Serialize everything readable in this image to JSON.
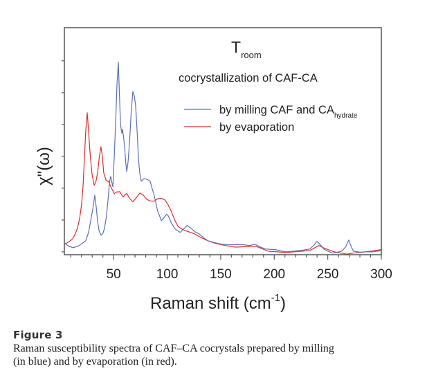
{
  "chart_data": {
    "type": "line",
    "title": "",
    "annotations": {
      "temperature_label": "T",
      "temperature_subscript": "room",
      "subtitle": "cocrystallization of CAF-CA"
    },
    "xlabel": "Raman shift (cm",
    "xlabel_superscript": "-1",
    "xlabel_suffix": ")",
    "ylabel": "χ\"(ω)",
    "xlim": [
      4,
      300
    ],
    "ylim": [
      -0.09,
      7.04
    ],
    "x_ticks": [
      50,
      100,
      150,
      200,
      250,
      300
    ],
    "x_tick_labels": [
      "50",
      "100",
      "150",
      "200",
      "250",
      "300"
    ],
    "x_minor_step": 10,
    "y_ticks": [
      0,
      1,
      2,
      3,
      4,
      5,
      6
    ],
    "y_tick_labels": [],
    "grid": false,
    "legend": {
      "placement": "top-right",
      "entries": [
        {
          "label": "by milling CAF and CA",
          "subscript": "hydrate",
          "color": "#5a6fb5"
        },
        {
          "label": "by evaporation",
          "subscript": "",
          "color": "#e02b2b"
        }
      ]
    },
    "series": [
      {
        "name": "by milling CAF and CA_hydrate",
        "color": "#5a6fb5",
        "points": [
          [
            4,
            0.26
          ],
          [
            5.2,
            0.24
          ],
          [
            8.5,
            0.17
          ],
          [
            12.3,
            0.13
          ],
          [
            18,
            0.2
          ],
          [
            24,
            0.35
          ],
          [
            26.5,
            0.6
          ],
          [
            28.5,
            0.96
          ],
          [
            30.8,
            1.4
          ],
          [
            32.4,
            1.78
          ],
          [
            33.8,
            1.4
          ],
          [
            35,
            0.96
          ],
          [
            36.5,
            0.65
          ],
          [
            38.2,
            0.52
          ],
          [
            40,
            0.58
          ],
          [
            41.5,
            0.74
          ],
          [
            43.2,
            1.1
          ],
          [
            44.7,
            1.61
          ],
          [
            46.2,
            2.2
          ],
          [
            47.3,
            2.37
          ],
          [
            48.3,
            2.2
          ],
          [
            49.3,
            2.04
          ],
          [
            50.5,
            2.9
          ],
          [
            51.8,
            4.0
          ],
          [
            53.2,
            5.3
          ],
          [
            54.4,
            5.96
          ],
          [
            55.4,
            5.0
          ],
          [
            56.4,
            4.0
          ],
          [
            57.7,
            3.72
          ],
          [
            58.3,
            3.85
          ],
          [
            59.3,
            3.6
          ],
          [
            60.3,
            3.28
          ],
          [
            61.3,
            2.8
          ],
          [
            62.2,
            2.52
          ],
          [
            63.4,
            2.8
          ],
          [
            64.8,
            3.41
          ],
          [
            66.4,
            4.4
          ],
          [
            68.0,
            5.04
          ],
          [
            69.3,
            4.9
          ],
          [
            70.6,
            4.59
          ],
          [
            71.9,
            3.8
          ],
          [
            73.2,
            2.91
          ],
          [
            74.5,
            2.45
          ],
          [
            75.8,
            2.22
          ],
          [
            78.4,
            2.3
          ],
          [
            81.0,
            2.28
          ],
          [
            82.7,
            2.25
          ],
          [
            84.3,
            2.2
          ],
          [
            85.9,
            2.0
          ],
          [
            87.5,
            1.83
          ],
          [
            91,
            1.3
          ],
          [
            94.6,
            0.98
          ],
          [
            97.9,
            1.11
          ],
          [
            99.5,
            1.18
          ],
          [
            101.1,
            1.13
          ],
          [
            104,
            0.9
          ],
          [
            107.5,
            0.72
          ],
          [
            112.1,
            0.61
          ],
          [
            115.5,
            0.72
          ],
          [
            118.6,
            0.83
          ],
          [
            122,
            0.75
          ],
          [
            126,
            0.63
          ],
          [
            129.6,
            0.57
          ],
          [
            134,
            0.45
          ],
          [
            138,
            0.35
          ],
          [
            144,
            0.29
          ],
          [
            151,
            0.24
          ],
          [
            158,
            0.22
          ],
          [
            165,
            0.23
          ],
          [
            172.4,
            0.22
          ],
          [
            177,
            0.2
          ],
          [
            182,
            0.24
          ],
          [
            187,
            0.15
          ],
          [
            191.8,
            0.09
          ],
          [
            196,
            0.08
          ],
          [
            200.9,
            0.07
          ],
          [
            206,
            0.03
          ],
          [
            211.3,
            0.0
          ],
          [
            218,
            0.02
          ],
          [
            226,
            0.05
          ],
          [
            233.3,
            0.09
          ],
          [
            236.8,
            0.2
          ],
          [
            239.8,
            0.33
          ],
          [
            243,
            0.22
          ],
          [
            246.3,
            0.09
          ],
          [
            250,
            0.02
          ],
          [
            254.7,
            -0.04
          ],
          [
            259,
            -0.01
          ],
          [
            263.1,
            0.02
          ],
          [
            266.5,
            0.15
          ],
          [
            269.6,
            0.37
          ],
          [
            272,
            0.15
          ],
          [
            274.1,
            0.02
          ],
          [
            280,
            -0.01
          ],
          [
            285.2,
            0.0
          ],
          [
            292,
            0.0
          ],
          [
            300,
            0.04
          ]
        ]
      },
      {
        "name": "by evaporation",
        "color": "#e02b2b",
        "points": [
          [
            4,
            0.26
          ],
          [
            5.2,
            0.26
          ],
          [
            8.5,
            0.32
          ],
          [
            11.7,
            0.41
          ],
          [
            14,
            0.55
          ],
          [
            16.2,
            0.74
          ],
          [
            18.3,
            1.05
          ],
          [
            20.1,
            1.5
          ],
          [
            21.5,
            2.1
          ],
          [
            22.7,
            2.91
          ],
          [
            24,
            3.8
          ],
          [
            25.3,
            4.37
          ],
          [
            26.6,
            3.8
          ],
          [
            27.9,
            3.13
          ],
          [
            29.8,
            2.45
          ],
          [
            31.8,
            2.09
          ],
          [
            33.4,
            2.2
          ],
          [
            35,
            2.48
          ],
          [
            36.7,
            3.0
          ],
          [
            38.2,
            3.3
          ],
          [
            39.5,
            3.0
          ],
          [
            40.8,
            2.48
          ],
          [
            43,
            2.25
          ],
          [
            45.4,
            2.2
          ],
          [
            48,
            2.0
          ],
          [
            50.6,
            1.83
          ],
          [
            53,
            1.88
          ],
          [
            55.7,
            1.89
          ],
          [
            57.3,
            1.8
          ],
          [
            59,
            1.72
          ],
          [
            60.6,
            1.8
          ],
          [
            62.2,
            1.83
          ],
          [
            65,
            1.68
          ],
          [
            68,
            1.57
          ],
          [
            71.2,
            1.7
          ],
          [
            74.5,
            1.85
          ],
          [
            77.7,
            1.78
          ],
          [
            81,
            1.65
          ],
          [
            84.2,
            1.6
          ],
          [
            87.5,
            1.59
          ],
          [
            91.4,
            1.67
          ],
          [
            94.6,
            1.68
          ],
          [
            97.9,
            1.63
          ],
          [
            100.8,
            1.48
          ],
          [
            103.7,
            1.28
          ],
          [
            107,
            1.0
          ],
          [
            110.2,
            0.8
          ],
          [
            113.5,
            0.72
          ],
          [
            116.7,
            0.67
          ],
          [
            121,
            0.62
          ],
          [
            125.1,
            0.57
          ],
          [
            131.5,
            0.45
          ],
          [
            138,
            0.35
          ],
          [
            144.5,
            0.27
          ],
          [
            151,
            0.22
          ],
          [
            157.5,
            0.18
          ],
          [
            164,
            0.15
          ],
          [
            170.5,
            0.16
          ],
          [
            177,
            0.17
          ],
          [
            183.4,
            0.17
          ],
          [
            189,
            0.09
          ],
          [
            194.4,
            0.02
          ],
          [
            203,
            0.0
          ],
          [
            211.3,
            -0.02
          ],
          [
            222,
            0.01
          ],
          [
            233.3,
            0.04
          ],
          [
            237.5,
            0.12
          ],
          [
            241.7,
            0.2
          ],
          [
            246,
            0.13
          ],
          [
            250.2,
            0.07
          ],
          [
            256,
            0.0
          ],
          [
            262,
            -0.04
          ],
          [
            267.7,
            -0.07
          ],
          [
            276,
            -0.03
          ],
          [
            285.2,
            0.0
          ],
          [
            292,
            0.03
          ],
          [
            300,
            0.07
          ]
        ]
      }
    ]
  },
  "caption": {
    "figure_label": "Figure 3",
    "text_line1": "Raman susceptibility spectra of CAF–CA cocrystals prepared by milling",
    "text_line2": "(in blue) and by evaporation (in red)."
  }
}
